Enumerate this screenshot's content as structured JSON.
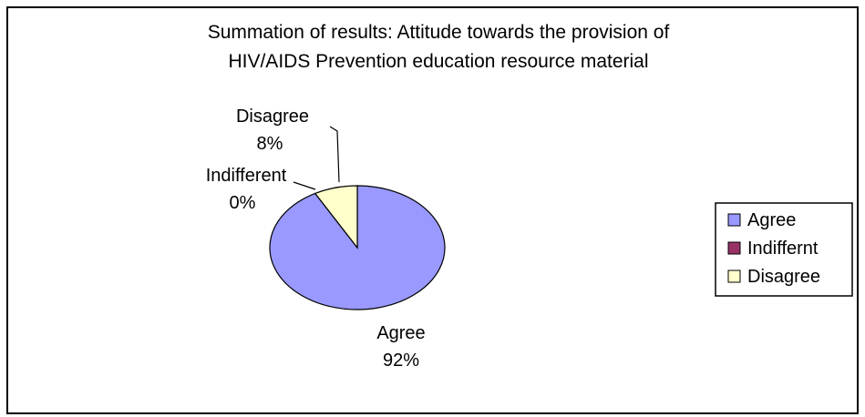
{
  "chart_data": {
    "type": "pie",
    "title_lines": [
      "Summation of results:  Attitude towards the provision of",
      "HIV/AIDS Prevention education resource material"
    ],
    "slices": [
      {
        "label": "Agree",
        "value": 92,
        "value_text": "92%",
        "color": "#9999ff"
      },
      {
        "label": "Indifferent",
        "value": 0,
        "value_text": "0%",
        "color": "#993366"
      },
      {
        "label": "Disagree",
        "value": 8,
        "value_text": "8%",
        "color": "#ffffcc"
      }
    ],
    "legend_position": "right",
    "legend": [
      {
        "label": "Agree",
        "color": "#9999ff"
      },
      {
        "label": "Indiffernt",
        "color": "#993366"
      },
      {
        "label": "Disagree",
        "color": "#ffffcc"
      }
    ]
  }
}
